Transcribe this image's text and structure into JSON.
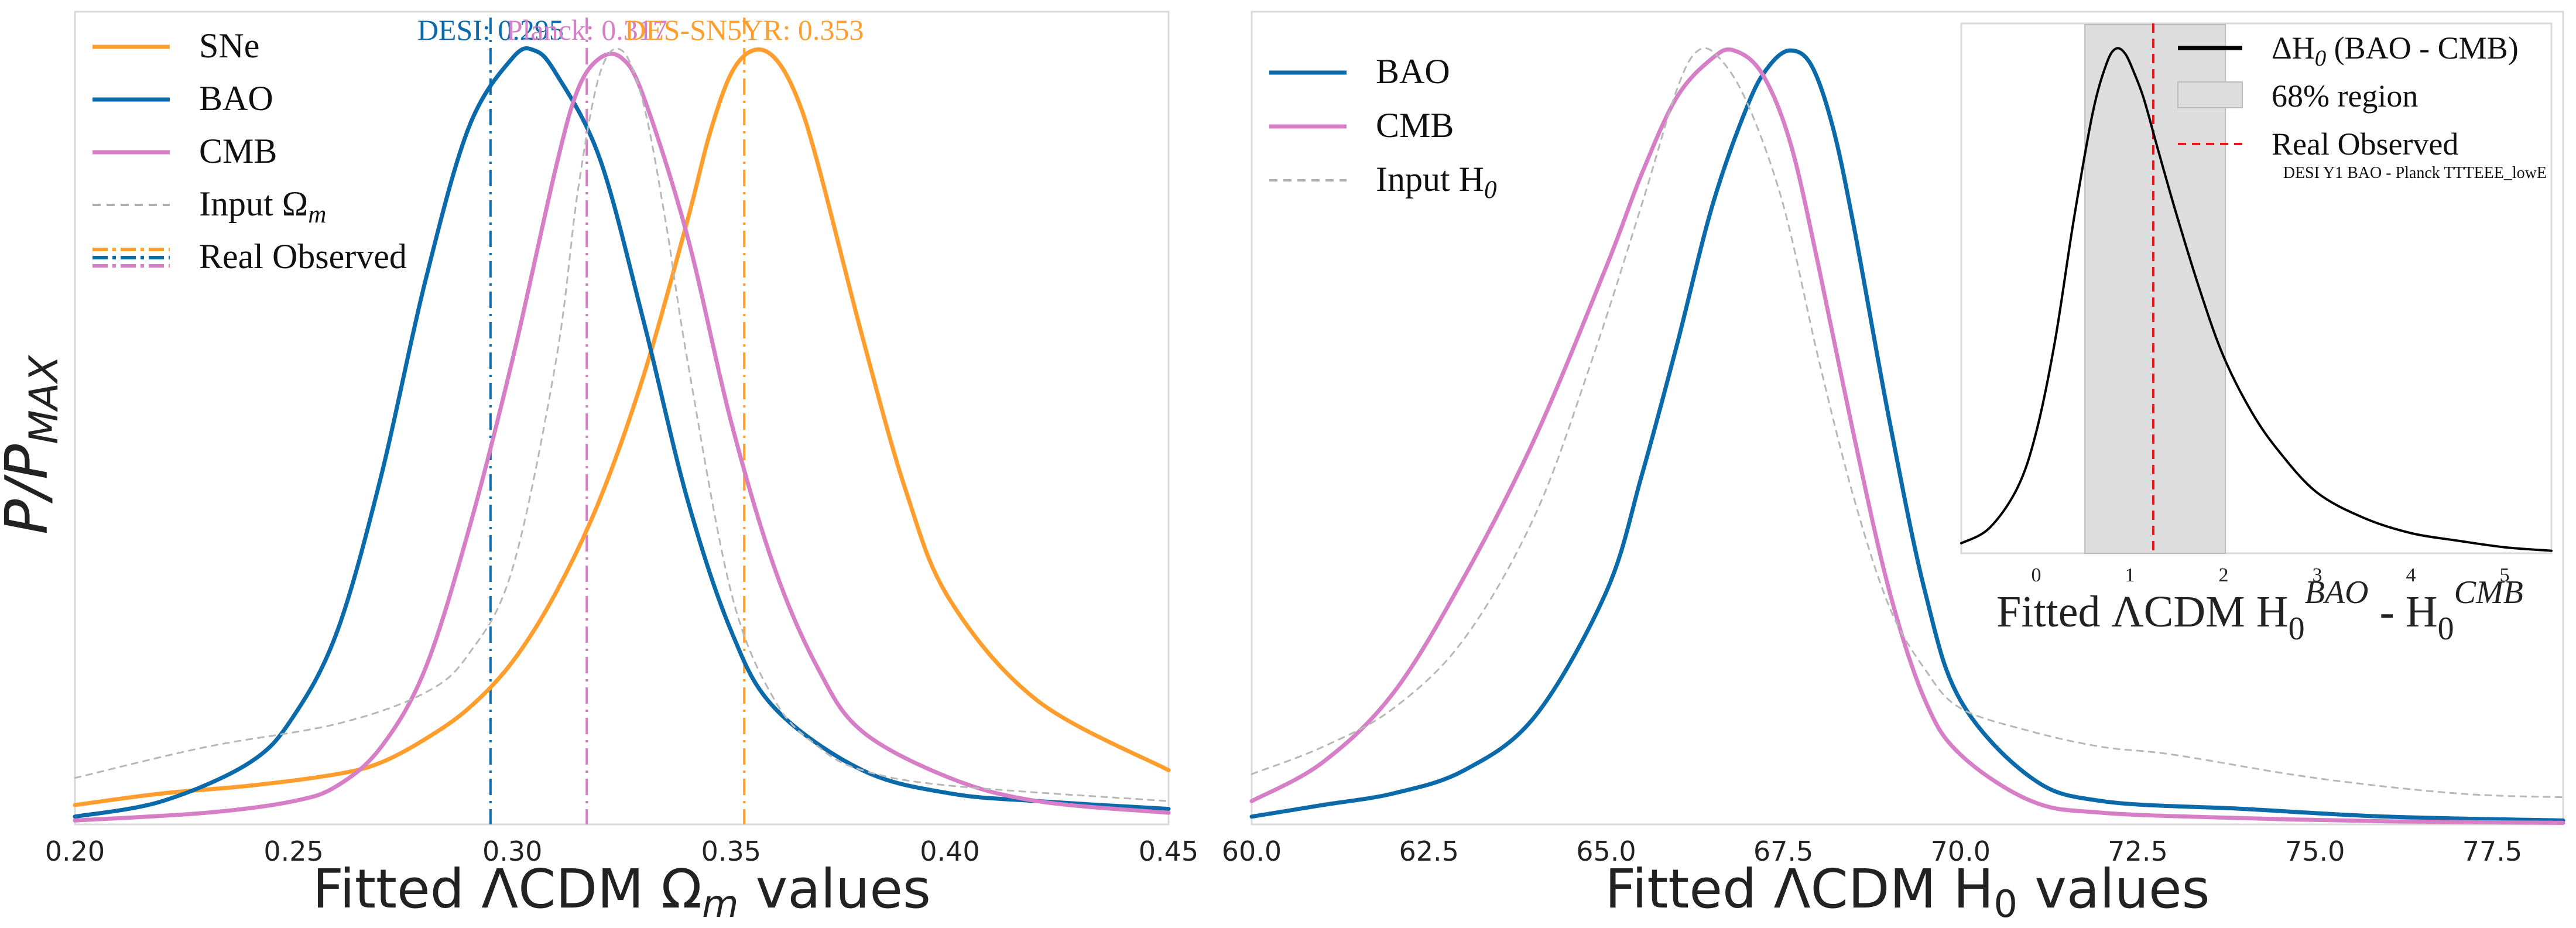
{
  "figure": {
    "shared_ylabel": "P/P",
    "shared_ylabel_sub": "MAX"
  },
  "chart_data": [
    {
      "type": "line",
      "id": "omega_m",
      "title": "",
      "xlabel_pre": "Fitted ΛCDM  Ω",
      "xlabel_sub": "m",
      "xlabel_post": " values",
      "ylabel": "P/PMAX",
      "xlim": [
        0.2,
        0.45
      ],
      "ylim": [
        0,
        1.05
      ],
      "xticks": [
        0.2,
        0.25,
        0.3,
        0.35,
        0.4,
        0.45
      ],
      "xtick_labels": [
        "0.20",
        "0.25",
        "0.30",
        "0.35",
        "0.40",
        "0.45"
      ],
      "grid": false,
      "legend_position": "top-left",
      "legend": [
        {
          "label": "SNe",
          "color": "#ff9e2c",
          "style": "solid"
        },
        {
          "label": "BAO",
          "color": "#0a6aaa",
          "style": "solid"
        },
        {
          "label": "CMB",
          "color": "#d67fc6",
          "style": "solid"
        },
        {
          "label": "Input Ω",
          "label_sub": "m",
          "color": "#b0b0b0",
          "style": "dashed"
        },
        {
          "label": "Real Observed",
          "color": "#0a6aaa",
          "style": "dashdot-multi"
        }
      ],
      "series": [
        {
          "name": "SNe",
          "color": "#ff9e2c",
          "dash": "",
          "width": 7,
          "x": [
            0.2,
            0.22,
            0.24,
            0.26,
            0.27,
            0.28,
            0.29,
            0.3,
            0.31,
            0.32,
            0.33,
            0.34,
            0.345,
            0.35,
            0.355,
            0.36,
            0.365,
            0.37,
            0.38,
            0.39,
            0.4,
            0.42,
            0.45
          ],
          "y": [
            0.025,
            0.04,
            0.05,
            0.065,
            0.08,
            0.11,
            0.15,
            0.21,
            0.3,
            0.42,
            0.58,
            0.78,
            0.89,
            0.97,
            1.0,
            0.99,
            0.94,
            0.85,
            0.63,
            0.43,
            0.29,
            0.16,
            0.07
          ]
        },
        {
          "name": "BAO",
          "color": "#0a6aaa",
          "dash": "",
          "width": 7,
          "x": [
            0.2,
            0.22,
            0.24,
            0.25,
            0.26,
            0.27,
            0.28,
            0.29,
            0.3,
            0.305,
            0.31,
            0.32,
            0.33,
            0.34,
            0.35,
            0.36,
            0.38,
            0.4,
            0.42,
            0.45
          ],
          "y": [
            0.01,
            0.03,
            0.08,
            0.14,
            0.25,
            0.45,
            0.7,
            0.9,
            0.99,
            1.0,
            0.97,
            0.86,
            0.65,
            0.42,
            0.25,
            0.15,
            0.07,
            0.04,
            0.03,
            0.02
          ]
        },
        {
          "name": "CMB",
          "color": "#d67fc6",
          "dash": "",
          "width": 7,
          "x": [
            0.2,
            0.23,
            0.25,
            0.26,
            0.27,
            0.28,
            0.29,
            0.3,
            0.31,
            0.315,
            0.32,
            0.325,
            0.33,
            0.34,
            0.35,
            0.36,
            0.37,
            0.38,
            0.4,
            0.42,
            0.45
          ],
          "y": [
            0.005,
            0.015,
            0.03,
            0.05,
            0.1,
            0.2,
            0.38,
            0.6,
            0.85,
            0.95,
            0.99,
            0.99,
            0.94,
            0.76,
            0.52,
            0.33,
            0.2,
            0.12,
            0.06,
            0.03,
            0.015
          ]
        },
        {
          "name": "Input Ω_m",
          "color": "#b8b8b8",
          "dash": "10 10",
          "width": 3,
          "x": [
            0.2,
            0.23,
            0.26,
            0.28,
            0.29,
            0.3,
            0.31,
            0.315,
            0.32,
            0.325,
            0.33,
            0.335,
            0.34,
            0.35,
            0.36,
            0.37,
            0.38,
            0.4,
            0.45
          ],
          "y": [
            0.06,
            0.1,
            0.13,
            0.17,
            0.22,
            0.33,
            0.6,
            0.82,
            0.97,
            1.0,
            0.93,
            0.78,
            0.6,
            0.3,
            0.16,
            0.1,
            0.07,
            0.05,
            0.03
          ]
        }
      ],
      "vlines": [
        {
          "x": 0.295,
          "color": "#0a6aaa",
          "label": "DESI: 0.295"
        },
        {
          "x": 0.317,
          "color": "#d67fc6",
          "label": "Planck: 0.317"
        },
        {
          "x": 0.353,
          "color": "#ff9e2c",
          "label": "DES-SN5YR: 0.353"
        }
      ]
    },
    {
      "type": "line",
      "id": "h0",
      "title": "",
      "xlabel_pre": "Fitted ΛCDM  H",
      "xlabel_sub": "0",
      "xlabel_post": " values",
      "xlim": [
        60.0,
        78.5
      ],
      "ylim": [
        0,
        1.05
      ],
      "xticks": [
        60,
        62.5,
        65,
        67.5,
        70,
        72.5,
        75,
        77.5
      ],
      "xtick_labels": [
        "60.0",
        "62.5",
        "65.0",
        "67.5",
        "70.0",
        "72.5",
        "75.0",
        "77.5"
      ],
      "grid": false,
      "legend_position": "top-left",
      "legend": [
        {
          "label": "BAO",
          "color": "#0a6aaa",
          "style": "solid"
        },
        {
          "label": "CMB",
          "color": "#d67fc6",
          "style": "solid"
        },
        {
          "label": "Input H",
          "label_sub": "0",
          "color": "#b0b0b0",
          "style": "dashed"
        }
      ],
      "series": [
        {
          "name": "BAO",
          "color": "#0a6aaa",
          "dash": "",
          "width": 7,
          "x": [
            60,
            61,
            62,
            63,
            64,
            65,
            65.5,
            66,
            66.5,
            67,
            67.3,
            67.6,
            67.9,
            68.2,
            68.5,
            69,
            69.5,
            70,
            71,
            72,
            74,
            76,
            78.5
          ],
          "y": [
            0.01,
            0.025,
            0.04,
            0.07,
            0.14,
            0.3,
            0.45,
            0.62,
            0.8,
            0.93,
            0.98,
            1.0,
            0.98,
            0.9,
            0.77,
            0.52,
            0.3,
            0.16,
            0.06,
            0.03,
            0.02,
            0.01,
            0.005
          ]
        },
        {
          "name": "CMB",
          "color": "#d67fc6",
          "dash": "",
          "width": 7,
          "x": [
            60,
            61,
            62,
            63,
            64,
            65,
            65.5,
            66,
            66.5,
            66.8,
            67.2,
            67.6,
            68,
            68.5,
            69,
            69.5,
            70,
            71,
            72,
            74,
            76,
            78.5
          ],
          "y": [
            0.03,
            0.08,
            0.17,
            0.32,
            0.5,
            0.72,
            0.84,
            0.94,
            0.99,
            1.0,
            0.97,
            0.88,
            0.72,
            0.5,
            0.3,
            0.16,
            0.09,
            0.03,
            0.015,
            0.008,
            0.004,
            0.002
          ]
        },
        {
          "name": "Input H_0",
          "color": "#b8b8b8",
          "dash": "10 10",
          "width": 3,
          "x": [
            60,
            61,
            62,
            63,
            64,
            64.8,
            65.5,
            66,
            66.3,
            66.6,
            67,
            67.5,
            68,
            68.5,
            69,
            69.5,
            70,
            71,
            72,
            73,
            75,
            77,
            78.5
          ],
          "y": [
            0.065,
            0.1,
            0.15,
            0.24,
            0.4,
            0.6,
            0.8,
            0.95,
            1.0,
            0.99,
            0.93,
            0.8,
            0.6,
            0.42,
            0.28,
            0.2,
            0.15,
            0.12,
            0.1,
            0.09,
            0.06,
            0.04,
            0.035
          ]
        }
      ]
    },
    {
      "type": "area",
      "id": "delta_h0_inset",
      "title": "",
      "xlabel_pre": "Fitted ΛCDM H",
      "xlabel_sub": "0",
      "xlabel_sup": "BAO",
      "xlabel_mid": " - H",
      "xlabel_sub2": "0",
      "xlabel_sup2": "CMB",
      "xlim": [
        -0.8,
        5.5
      ],
      "ylim": [
        0,
        1.05
      ],
      "xticks": [
        0,
        1,
        2,
        3,
        4,
        5
      ],
      "xtick_labels": [
        "0",
        "1",
        "2",
        "3",
        "4",
        "5"
      ],
      "legend_position": "top-right",
      "legend": [
        {
          "label": "ΔH",
          "label_sub": "0",
          "label_tail": " (BAO - CMB)",
          "color": "#000000",
          "style": "solid"
        },
        {
          "label": "68% region",
          "color": "#dddddd",
          "style": "patch"
        },
        {
          "label": "Real Observed",
          "color": "#e8151b",
          "style": "dashed"
        }
      ],
      "note": "DESI Y1 BAO - Planck TTTEEE_lowE",
      "series": [
        {
          "name": "ΔH0 (BAO - CMB)",
          "color": "#000000",
          "x": [
            -0.8,
            -0.5,
            -0.2,
            0,
            0.2,
            0.4,
            0.6,
            0.75,
            0.85,
            0.95,
            1.05,
            1.15,
            1.3,
            1.5,
            1.75,
            2.0,
            2.3,
            2.6,
            3.0,
            3.5,
            4.0,
            4.5,
            5.0,
            5.5
          ],
          "y": [
            0.02,
            0.05,
            0.13,
            0.24,
            0.42,
            0.66,
            0.87,
            0.97,
            1.0,
            0.99,
            0.95,
            0.9,
            0.8,
            0.67,
            0.52,
            0.39,
            0.28,
            0.2,
            0.12,
            0.07,
            0.04,
            0.025,
            0.012,
            0.005
          ]
        }
      ],
      "shaded_region": [
        0.52,
        2.02
      ],
      "observed_x": 1.25
    }
  ]
}
